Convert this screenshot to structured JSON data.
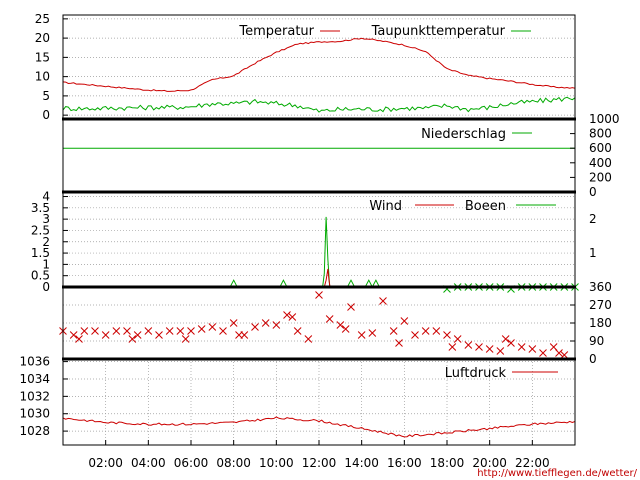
{
  "colors": {
    "red": "#cc0000",
    "green": "#00aa00",
    "grid": "#9a9a9a"
  },
  "source_url": "http://www.tiefflegen.de/wetter/",
  "x_axis": {
    "range": [
      "00:00",
      "24:00"
    ],
    "ticks": [
      "02:00",
      "04:00",
      "06:00",
      "08:00",
      "10:00",
      "12:00",
      "14:00",
      "16:00",
      "18:00",
      "20:00",
      "22:00"
    ]
  },
  "chart_data": [
    {
      "type": "line",
      "panel": "temperature",
      "ylim": [
        -1,
        26
      ],
      "yticks": [
        "0",
        "5",
        "10",
        "15",
        "20",
        "25"
      ],
      "grid": true,
      "legend_placement": "top-right",
      "x": [
        "00:00",
        "01:00",
        "02:00",
        "03:00",
        "04:00",
        "05:00",
        "06:00",
        "07:00",
        "08:00",
        "09:00",
        "10:00",
        "11:00",
        "12:00",
        "13:00",
        "14:00",
        "15:00",
        "16:00",
        "17:00",
        "18:00",
        "19:00",
        "20:00",
        "21:00",
        "22:00",
        "23:00",
        "24:00"
      ],
      "series": [
        {
          "name": "Temperatur",
          "color": "#cc0000",
          "values": [
            8.5,
            8.0,
            7.5,
            7.0,
            6.5,
            6.2,
            6.5,
            9.2,
            10.2,
            13.5,
            16.3,
            18.5,
            19.0,
            19.2,
            20.0,
            19.2,
            18.2,
            16.5,
            12.0,
            10.3,
            9.5,
            8.8,
            8.0,
            7.3,
            7.0
          ]
        },
        {
          "name": "Taupunkttemperatur",
          "color": "#00aa00",
          "values": [
            1.8,
            1.7,
            1.8,
            1.9,
            2.0,
            2.0,
            2.2,
            3.0,
            3.0,
            3.5,
            3.0,
            2.5,
            1.0,
            1.5,
            1.6,
            1.5,
            1.8,
            1.8,
            2.5,
            1.5,
            2.0,
            3.0,
            3.5,
            4.0,
            4.5
          ]
        }
      ]
    },
    {
      "type": "line",
      "panel": "precipitation",
      "ylim": [
        0,
        1000
      ],
      "yticks": [
        "0",
        "200",
        "400",
        "600",
        "800",
        "1000"
      ],
      "grid": false,
      "legend_placement": "top-right",
      "series": [
        {
          "name": "Niederschlag",
          "color": "#00aa00",
          "x": [
            "00:00",
            "24:00"
          ],
          "values": [
            600,
            600
          ]
        }
      ]
    },
    {
      "type": "line",
      "panel": "wind",
      "ylim": [
        0,
        4.2
      ],
      "yticks": [
        "0",
        "0.5",
        "1",
        "1.5",
        "2",
        "2.5",
        "3",
        "3.5",
        "4"
      ],
      "y2ticks": [
        "1",
        "2"
      ],
      "grid": true,
      "legend_placement": "top-right",
      "series": [
        {
          "name": "Wind",
          "color": "#cc0000",
          "x": [
            "12:15",
            "12:20",
            "12:25",
            "12:28",
            "12:31"
          ],
          "values": [
            0,
            0.3,
            0.8,
            0.3,
            0
          ]
        },
        {
          "name": "Boeen",
          "color": "#00aa00",
          "x": [
            "07:50",
            "08:00",
            "08:10",
            "10:10",
            "10:20",
            "10:30",
            "12:10",
            "12:15",
            "12:20",
            "12:25",
            "12:30",
            "12:35",
            "13:20",
            "13:30",
            "13:40",
            "14:10",
            "14:20",
            "14:30",
            "14:40",
            "14:50",
            "15:00"
          ],
          "values": [
            0,
            0.3,
            0,
            0,
            0.3,
            0,
            0,
            0.6,
            3.1,
            1.2,
            0,
            0,
            0,
            0.3,
            0,
            0,
            0.3,
            0,
            0.3,
            0,
            0
          ]
        }
      ]
    },
    {
      "type": "scatter",
      "panel": "wind-direction",
      "ylim": [
        0,
        360
      ],
      "y2ticks": [
        "0",
        "90",
        "180",
        "270",
        "360"
      ],
      "grid": true,
      "series": [
        {
          "color": "#cc0000",
          "marker": "x",
          "x": [
            "00:00",
            "00:30",
            "01:00",
            "01:30",
            "02:00",
            "02:30",
            "03:00",
            "03:30",
            "04:00",
            "04:30",
            "05:00",
            "05:30",
            "06:00",
            "06:30",
            "07:00",
            "07:30",
            "08:00",
            "08:30",
            "09:00",
            "09:30",
            "10:00",
            "10:30",
            "11:00",
            "11:30",
            "12:00",
            "12:30",
            "13:00",
            "13:30",
            "14:00",
            "14:30",
            "15:00",
            "15:30",
            "16:00",
            "16:30",
            "17:00",
            "17:30",
            "18:00",
            "18:30",
            "19:00",
            "19:30",
            "20:00",
            "20:30",
            "21:00",
            "21:30",
            "22:00",
            "22:30",
            "23:00",
            "23:30",
            "00:45",
            "03:15",
            "05:45",
            "08:15",
            "10:45",
            "13:15",
            "15:45",
            "18:15",
            "20:45",
            "23:15"
          ],
          "values": [
            140,
            120,
            140,
            140,
            120,
            140,
            140,
            120,
            140,
            120,
            140,
            140,
            140,
            150,
            160,
            140,
            180,
            120,
            160,
            180,
            170,
            220,
            140,
            100,
            320,
            200,
            170,
            260,
            120,
            130,
            290,
            140,
            190,
            120,
            140,
            140,
            120,
            100,
            70,
            60,
            50,
            40,
            80,
            60,
            50,
            30,
            60,
            20,
            100,
            100,
            100,
            120,
            210,
            150,
            80,
            60,
            100,
            30
          ]
        },
        {
          "color": "#00aa00",
          "marker": "x",
          "x": [
            "18:00",
            "18:30",
            "19:00",
            "19:30",
            "20:00",
            "20:30",
            "21:00",
            "21:30",
            "22:00",
            "22:30",
            "23:00",
            "23:30",
            "24:00"
          ],
          "values": [
            350,
            360,
            360,
            360,
            360,
            360,
            350,
            360,
            360,
            360,
            360,
            360,
            360
          ]
        }
      ]
    },
    {
      "type": "line",
      "panel": "pressure",
      "ylim": [
        1026.4,
        1036.3
      ],
      "yticks": [
        "1028",
        "1030",
        "1032",
        "1034",
        "1036"
      ],
      "grid": true,
      "legend_placement": "top-right",
      "x": [
        "00:00",
        "02:00",
        "04:00",
        "06:00",
        "08:00",
        "10:00",
        "12:00",
        "14:00",
        "16:00",
        "18:00",
        "20:00",
        "22:00",
        "24:00"
      ],
      "series": [
        {
          "name": "Luftdruck",
          "color": "#cc0000",
          "values": [
            1029.5,
            1029.0,
            1028.8,
            1028.8,
            1029.0,
            1029.5,
            1029.2,
            1028.3,
            1027.4,
            1027.8,
            1028.3,
            1028.8,
            1029.1
          ]
        }
      ]
    }
  ]
}
